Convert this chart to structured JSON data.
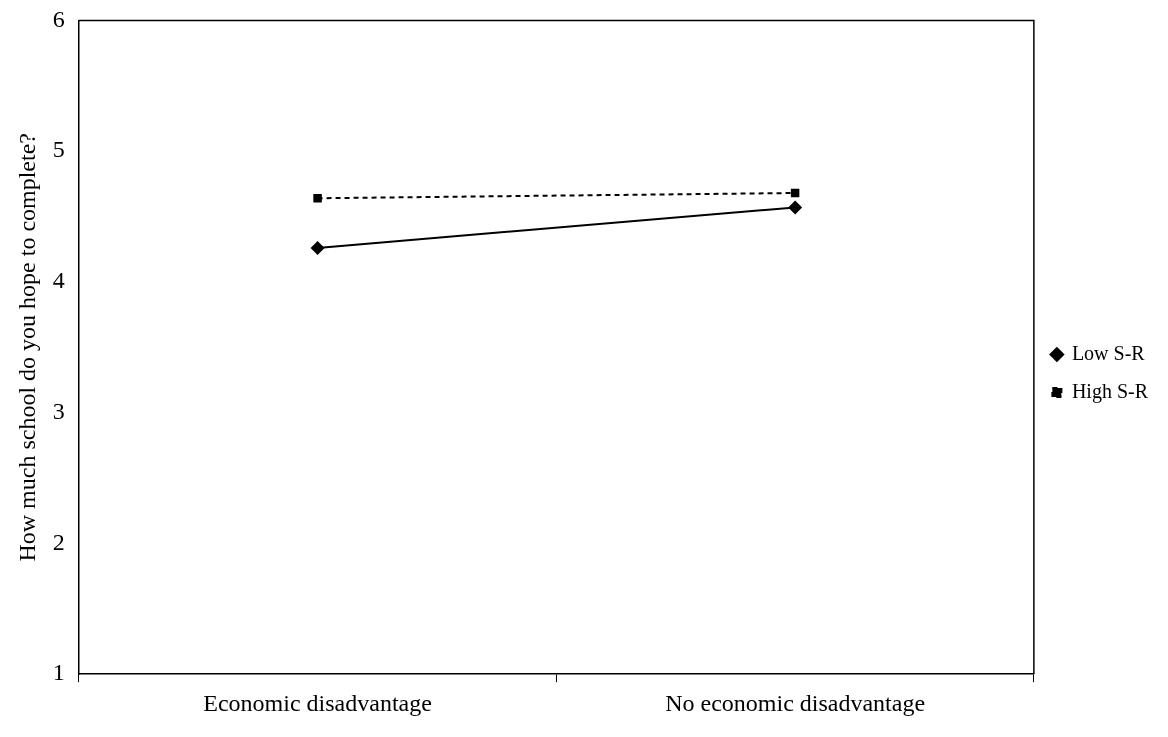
{
  "chart_data": {
    "type": "line",
    "ylabel": "How much school do you hope to complete?",
    "categories": [
      "Economic disadvantage",
      "No economic disadvantage"
    ],
    "series": [
      {
        "name": "Low S-R",
        "color": "#000000",
        "values": [
          4.26,
          4.57
        ],
        "marker": "diamond",
        "line_style": "solid"
      },
      {
        "name": "High S-R",
        "color": "#000000",
        "values": [
          4.64,
          4.68
        ],
        "marker": "square",
        "line_style": "dashed"
      }
    ],
    "ylim": [
      1,
      6
    ],
    "yticks": [
      1,
      2,
      3,
      4,
      5,
      6
    ],
    "grid": false,
    "legend": "right"
  }
}
